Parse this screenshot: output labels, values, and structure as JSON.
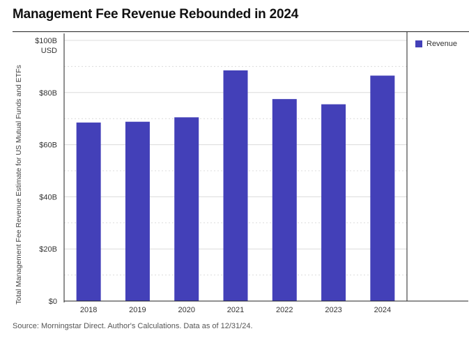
{
  "title": "Management Fee Revenue Rebounded in 2024",
  "source": "Source: Morningstar Direct. Author's Calculations. Data as of 12/31/24.",
  "colors": {
    "bar": "#4340b8",
    "grid": "#dcdcdc",
    "axis": "#222222"
  },
  "chart_data": {
    "type": "bar",
    "title": "Management Fee Revenue Rebounded in 2024",
    "ylabel": "Total Management Fee Revenue Estimate for US Mutual Funds and ETFs",
    "yunit": "USD",
    "xlabel": "",
    "categories": [
      "2018",
      "2019",
      "2020",
      "2021",
      "2022",
      "2023",
      "2024"
    ],
    "series": [
      {
        "name": "Revenue",
        "values": [
          68.5,
          68.8,
          70.5,
          88.5,
          77.5,
          75.5,
          86.5
        ]
      }
    ],
    "ylim": [
      0,
      100
    ],
    "yticks": [
      {
        "value": 0,
        "label": "$0"
      },
      {
        "value": 20,
        "label": "$20B"
      },
      {
        "value": 40,
        "label": "$40B"
      },
      {
        "value": 60,
        "label": "$60B"
      },
      {
        "value": 80,
        "label": "$80B"
      },
      {
        "value": 100,
        "label": "$100B"
      }
    ],
    "grid": true,
    "legend": "top-right"
  }
}
